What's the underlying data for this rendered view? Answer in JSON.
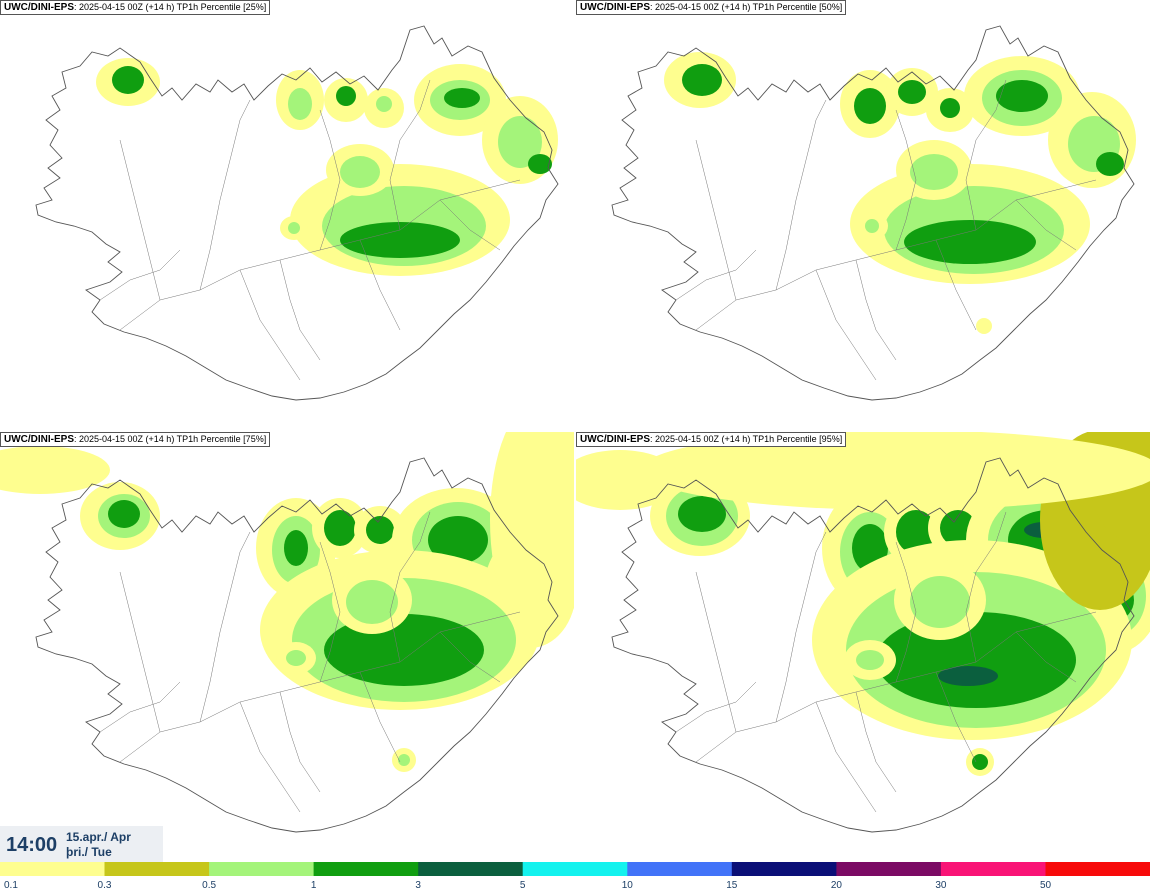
{
  "panels": [
    {
      "model": "UWC/DINI-EPS",
      "detail": ": 2025-04-15 00Z (+14 h) TP1h Percentile [25%]",
      "percentile": 25
    },
    {
      "model": "UWC/DINI-EPS",
      "detail": ": 2025-04-15 00Z (+14 h) TP1h Percentile [50%]",
      "percentile": 50
    },
    {
      "model": "UWC/DINI-EPS",
      "detail": ": 2025-04-15 00Z (+14 h) TP1h Percentile [75%]",
      "percentile": 75
    },
    {
      "model": "UWC/DINI-EPS",
      "detail": ": 2025-04-15 00Z (+14 h) TP1h Percentile [95%]",
      "percentile": 95
    }
  ],
  "time": {
    "clock": "14:00",
    "date_line": "15.apr./ Apr",
    "day_line": "þri./ Tue"
  },
  "legend": {
    "colors": [
      "#fefe8f",
      "#c6c61a",
      "#a4f47a",
      "#109e10",
      "#0b5f3e",
      "#14f2ee",
      "#4273f8",
      "#0b0f77",
      "#7b0a64",
      "#f91476",
      "#f70a0a"
    ],
    "labels": [
      "0.1",
      "0.3",
      "0.5",
      "1",
      "3",
      "5",
      "10",
      "15",
      "20",
      "30",
      "50"
    ]
  }
}
